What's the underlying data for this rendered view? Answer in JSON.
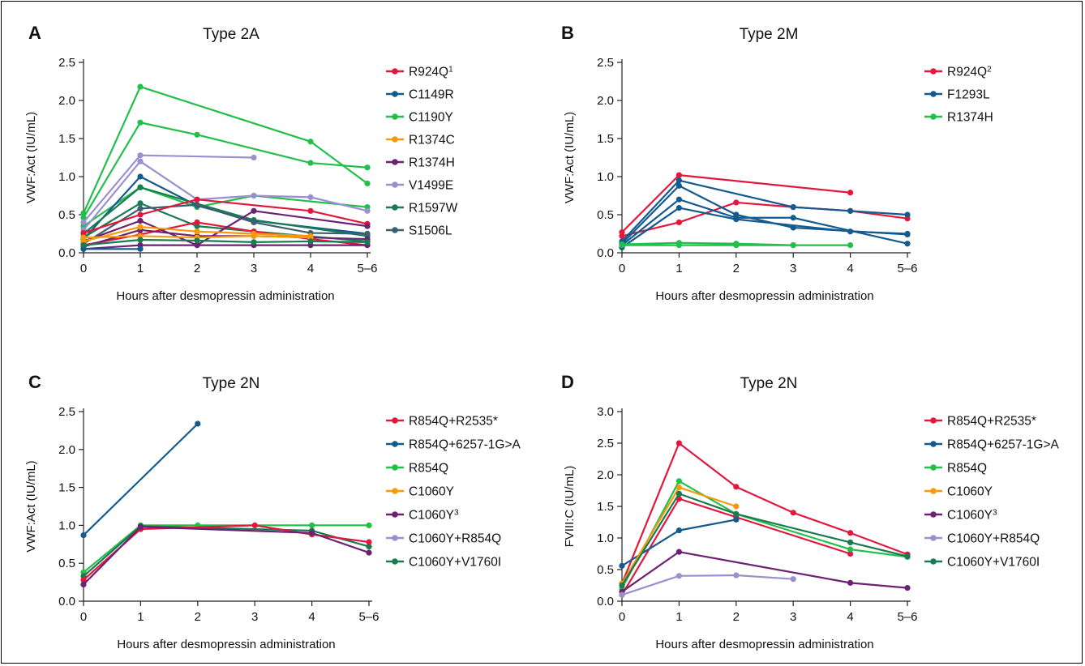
{
  "chart_data": [
    {
      "type": "line",
      "panel": "A",
      "title": "Type 2A",
      "xlabel": "Hours after desmopressin administration",
      "ylabel": "VWF:Act (IU/mL)",
      "x_categories": [
        "0",
        "1",
        "2",
        "3",
        "4",
        "5–6"
      ],
      "ylim": [
        0,
        2.5
      ],
      "yticks": [
        "0.0",
        "0.5",
        "1.0",
        "1.5",
        "2.0",
        "2.5"
      ],
      "legend": [
        {
          "name": "R924Q",
          "sup": "1",
          "color": "#e3173e"
        },
        {
          "name": "C1149R",
          "color": "#135a8e"
        },
        {
          "name": "C1190Y",
          "color": "#22bf4b"
        },
        {
          "name": "R1374C",
          "color": "#f59a0c"
        },
        {
          "name": "R1374H",
          "color": "#6d2173"
        },
        {
          "name": "V1499E",
          "color": "#9b8fd0"
        },
        {
          "name": "R1597W",
          "color": "#1a7a50"
        },
        {
          "name": "S1506L",
          "color": "#3d5f73"
        }
      ],
      "series": [
        {
          "color": "#22bf4b",
          "points": [
            [
              0,
              0.52
            ],
            [
              1,
              2.18
            ],
            [
              4,
              1.46
            ],
            [
              5,
              0.91
            ]
          ]
        },
        {
          "color": "#22bf4b",
          "points": [
            [
              0,
              0.46
            ],
            [
              1,
              1.71
            ],
            [
              2,
              1.55
            ],
            [
              4,
              1.18
            ],
            [
              5,
              1.12
            ]
          ]
        },
        {
          "color": "#22bf4b",
          "points": [
            [
              0,
              0.35
            ],
            [
              1,
              0.86
            ],
            [
              2,
              0.6
            ],
            [
              3,
              0.75
            ],
            [
              5,
              0.6
            ]
          ]
        },
        {
          "color": "#9b8fd0",
          "points": [
            [
              0,
              0.4
            ],
            [
              1,
              1.28
            ],
            [
              3,
              1.25
            ]
          ]
        },
        {
          "color": "#9b8fd0",
          "points": [
            [
              0,
              0.3
            ],
            [
              1,
              1.2
            ],
            [
              2,
              0.7
            ],
            [
              3,
              0.75
            ],
            [
              4,
              0.73
            ],
            [
              5,
              0.55
            ]
          ]
        },
        {
          "color": "#135a8e",
          "points": [
            [
              0,
              0.18
            ],
            [
              1,
              1.0
            ],
            [
              2,
              0.62
            ],
            [
              3,
              0.42
            ],
            [
              5,
              0.25
            ]
          ]
        },
        {
          "color": "#1a7a50",
          "points": [
            [
              0,
              0.25
            ],
            [
              1,
              0.86
            ],
            [
              3,
              0.43
            ],
            [
              5,
              0.22
            ]
          ]
        },
        {
          "color": "#1a7a50",
          "points": [
            [
              0,
              0.2
            ],
            [
              1,
              0.65
            ],
            [
              2,
              0.35
            ],
            [
              3,
              0.28
            ],
            [
              5,
              0.15
            ]
          ]
        },
        {
          "color": "#3d5f73",
          "points": [
            [
              0,
              0.12
            ],
            [
              1,
              0.58
            ],
            [
              2,
              0.63
            ],
            [
              3,
              0.4
            ],
            [
              4,
              0.26
            ],
            [
              5,
              0.25
            ]
          ]
        },
        {
          "color": "#e3173e",
          "points": [
            [
              0,
              0.26
            ],
            [
              1,
              0.5
            ],
            [
              2,
              0.7
            ],
            [
              4,
              0.55
            ],
            [
              5,
              0.38
            ]
          ]
        },
        {
          "color": "#e3173e",
          "points": [
            [
              0,
              0.1
            ],
            [
              1,
              0.24
            ],
            [
              2,
              0.4
            ],
            [
              3,
              0.28
            ],
            [
              4,
              0.18
            ],
            [
              5,
              0.1
            ]
          ]
        },
        {
          "color": "#6d2173",
          "points": [
            [
              0,
              0.15
            ],
            [
              1,
              0.42
            ],
            [
              2,
              0.1
            ],
            [
              3,
              0.55
            ],
            [
              5,
              0.35
            ]
          ]
        },
        {
          "color": "#6d2173",
          "points": [
            [
              0,
              0.08
            ],
            [
              1,
              0.3
            ],
            [
              2,
              0.22
            ],
            [
              3,
              0.22
            ],
            [
              4,
              0.2
            ],
            [
              5,
              0.18
            ]
          ]
        },
        {
          "color": "#6d2173",
          "points": [
            [
              0,
              0.05
            ],
            [
              1,
              0.1
            ],
            [
              2,
              0.1
            ],
            [
              3,
              0.1
            ],
            [
              4,
              0.1
            ],
            [
              5,
              0.1
            ]
          ]
        },
        {
          "color": "#f59a0c",
          "points": [
            [
              0,
              0.15
            ],
            [
              1,
              0.34
            ],
            [
              2,
              0.28
            ],
            [
              3,
              0.25
            ],
            [
              4,
              0.22
            ]
          ]
        },
        {
          "color": "#f59a0c",
          "points": [
            [
              0,
              0.2
            ],
            [
              1,
              0.22
            ],
            [
              2,
              0.2
            ],
            [
              3,
              0.22
            ],
            [
              4,
              0.2
            ]
          ]
        },
        {
          "color": "#135a8e",
          "points": [
            [
              0,
              0.05
            ],
            [
              1,
              0.05
            ]
          ]
        },
        {
          "color": "#1a7a50",
          "points": [
            [
              0,
              0.1
            ],
            [
              1,
              0.17
            ],
            [
              2,
              0.16
            ],
            [
              3,
              0.14
            ],
            [
              4,
              0.15
            ],
            [
              5,
              0.14
            ]
          ]
        }
      ]
    },
    {
      "type": "line",
      "panel": "B",
      "title": "Type 2M",
      "xlabel": "Hours after desmopressin administration",
      "ylabel": "VWF:Act (IU/mL)",
      "x_categories": [
        "0",
        "1",
        "2",
        "3",
        "4",
        "5–6"
      ],
      "ylim": [
        0,
        2.5
      ],
      "yticks": [
        "0.0",
        "0.5",
        "1.0",
        "1.5",
        "2.0",
        "2.5"
      ],
      "legend": [
        {
          "name": "R924Q",
          "sup": "2",
          "color": "#e3173e"
        },
        {
          "name": "F1293L",
          "color": "#135a8e"
        },
        {
          "name": "R1374H",
          "color": "#22bf4b"
        }
      ],
      "series": [
        {
          "color": "#e3173e",
          "points": [
            [
              0,
              0.27
            ],
            [
              1,
              1.02
            ],
            [
              4,
              0.79
            ]
          ]
        },
        {
          "color": "#e3173e",
          "points": [
            [
              0,
              0.22
            ],
            [
              1,
              0.4
            ],
            [
              2,
              0.66
            ],
            [
              3,
              0.6
            ],
            [
              4,
              0.55
            ],
            [
              5,
              0.45
            ]
          ]
        },
        {
          "color": "#135a8e",
          "points": [
            [
              0,
              0.15
            ],
            [
              1,
              0.95
            ],
            [
              3,
              0.6
            ],
            [
              4,
              0.55
            ],
            [
              5,
              0.5
            ]
          ]
        },
        {
          "color": "#135a8e",
          "points": [
            [
              0,
              0.12
            ],
            [
              1,
              0.88
            ],
            [
              2,
              0.5
            ],
            [
              3,
              0.33
            ],
            [
              5,
              0.24
            ]
          ]
        },
        {
          "color": "#135a8e",
          "points": [
            [
              0,
              0.1
            ],
            [
              1,
              0.7
            ],
            [
              2,
              0.46
            ],
            [
              3,
              0.46
            ],
            [
              5,
              0.12
            ]
          ]
        },
        {
          "color": "#135a8e",
          "points": [
            [
              0,
              0.07
            ],
            [
              1,
              0.59
            ],
            [
              2,
              0.44
            ],
            [
              4,
              0.28
            ],
            [
              5,
              0.25
            ]
          ]
        },
        {
          "color": "#22bf4b",
          "points": [
            [
              0,
              0.11
            ],
            [
              1,
              0.13
            ],
            [
              2,
              0.12
            ],
            [
              3,
              0.1
            ],
            [
              4,
              0.1
            ]
          ]
        },
        {
          "color": "#22bf4b",
          "points": [
            [
              0,
              0.1
            ],
            [
              1,
              0.1
            ],
            [
              2,
              0.1
            ],
            [
              3,
              0.1
            ]
          ]
        }
      ]
    },
    {
      "type": "line",
      "panel": "C",
      "title": "Type 2N",
      "xlabel": "Hours after desmopressin administration",
      "ylabel": "VWF:Act (IU/mL)",
      "x_categories": [
        "0",
        "1",
        "2",
        "3",
        "4",
        "5–6"
      ],
      "ylim": [
        0,
        2.5
      ],
      "yticks": [
        "0.0",
        "0.5",
        "1.0",
        "1.5",
        "2.0",
        "2.5"
      ],
      "legend": [
        {
          "name": "R854Q+R2535*",
          "color": "#e3173e"
        },
        {
          "name": "R854Q+6257-1G>A",
          "color": "#135a8e"
        },
        {
          "name": "R854Q",
          "color": "#22bf4b"
        },
        {
          "name": "C1060Y",
          "color": "#f59a0c"
        },
        {
          "name": "C1060Y",
          "sup": "3",
          "color": "#6d2173"
        },
        {
          "name": "C1060Y+R854Q",
          "color": "#9b8fd0"
        },
        {
          "name": "C1060Y+V1760I",
          "color": "#1a7a50"
        }
      ],
      "series": [
        {
          "color": "#135a8e",
          "points": [
            [
              0,
              0.87
            ],
            [
              2,
              2.34
            ]
          ]
        },
        {
          "color": "#22bf4b",
          "points": [
            [
              0,
              0.38
            ],
            [
              1,
              1.0
            ],
            [
              2,
              1.0
            ],
            [
              4,
              1.0
            ],
            [
              5,
              1.0
            ]
          ]
        },
        {
          "color": "#1a7a50",
          "points": [
            [
              0,
              0.33
            ],
            [
              1,
              0.99
            ],
            [
              4,
              0.93
            ],
            [
              5,
              0.72
            ]
          ]
        },
        {
          "color": "#e3173e",
          "points": [
            [
              0,
              0.28
            ],
            [
              1,
              0.95
            ],
            [
              3,
              1.0
            ],
            [
              4,
              0.88
            ],
            [
              5,
              0.78
            ]
          ]
        },
        {
          "color": "#6d2173",
          "points": [
            [
              0,
              0.22
            ],
            [
              1,
              0.98
            ],
            [
              4,
              0.9
            ],
            [
              5,
              0.64
            ]
          ]
        }
      ]
    },
    {
      "type": "line",
      "panel": "D",
      "title": "Type 2N",
      "xlabel": "Hours after desmopressin administration",
      "ylabel": "FVIII:C (IU/mL)",
      "x_categories": [
        "0",
        "1",
        "2",
        "3",
        "4",
        "5–6"
      ],
      "ylim": [
        0,
        3.0
      ],
      "yticks": [
        "0.0",
        "0.5",
        "1.0",
        "1.5",
        "2.0",
        "2.5",
        "3.0"
      ],
      "legend": [
        {
          "name": "R854Q+R2535*",
          "color": "#e3173e"
        },
        {
          "name": "R854Q+6257-1G>A",
          "color": "#135a8e"
        },
        {
          "name": "R854Q",
          "color": "#22bf4b"
        },
        {
          "name": "C1060Y",
          "color": "#f59a0c"
        },
        {
          "name": "C1060Y",
          "sup": "3",
          "color": "#6d2173"
        },
        {
          "name": "C1060Y+R854Q",
          "color": "#9b8fd0"
        },
        {
          "name": "C1060Y+V1760I",
          "color": "#1a7a50"
        }
      ],
      "series": [
        {
          "color": "#e3173e",
          "points": [
            [
              0,
              0.28
            ],
            [
              1,
              2.5
            ],
            [
              2,
              1.81
            ],
            [
              3,
              1.4
            ],
            [
              4,
              1.08
            ],
            [
              5,
              0.74
            ]
          ]
        },
        {
          "color": "#e3173e",
          "points": [
            [
              0,
              0.1
            ],
            [
              1,
              1.62
            ],
            [
              2,
              1.33
            ],
            [
              4,
              0.75
            ]
          ]
        },
        {
          "color": "#135a8e",
          "points": [
            [
              0,
              0.56
            ],
            [
              1,
              1.12
            ],
            [
              2,
              1.29
            ]
          ]
        },
        {
          "color": "#22bf4b",
          "points": [
            [
              0,
              0.2
            ],
            [
              1,
              1.9
            ],
            [
              2,
              1.38
            ],
            [
              4,
              0.82
            ],
            [
              5,
              0.7
            ]
          ]
        },
        {
          "color": "#f59a0c",
          "points": [
            [
              0,
              0.28
            ],
            [
              1,
              1.8
            ],
            [
              2,
              1.5
            ]
          ]
        },
        {
          "color": "#1a7a50",
          "points": [
            [
              0,
              0.25
            ],
            [
              1,
              1.7
            ],
            [
              2,
              1.38
            ],
            [
              4,
              0.93
            ],
            [
              5,
              0.71
            ]
          ]
        },
        {
          "color": "#6d2173",
          "points": [
            [
              0,
              0.15
            ],
            [
              1,
              0.78
            ],
            [
              4,
              0.29
            ],
            [
              5,
              0.21
            ]
          ]
        },
        {
          "color": "#9b8fd0",
          "points": [
            [
              0,
              0.1
            ],
            [
              1,
              0.4
            ],
            [
              2,
              0.41
            ],
            [
              3,
              0.35
            ]
          ]
        }
      ]
    }
  ]
}
